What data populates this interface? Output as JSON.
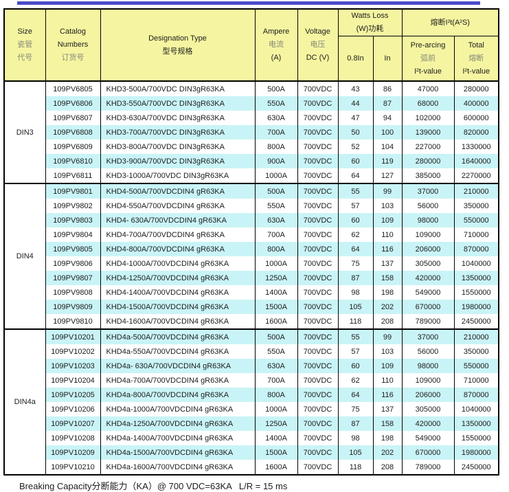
{
  "accent_bar_color": "#4B4BC8",
  "header_bg_color": "#F5F5A1",
  "stripe_color": "#C9F4F7",
  "header": {
    "size_en": "Size",
    "size_cn1": "瓷管",
    "size_cn2": "代号",
    "catalog_en1": "Catalog",
    "catalog_en2": "Numbers",
    "catalog_cn": "订货号",
    "designation_en": "Designation Type",
    "designation_cn": "型号规格",
    "ampere_en": "Ampere",
    "ampere_cn": "电流",
    "ampere_unit": "(A)",
    "voltage_en": "Voltage",
    "voltage_cn": "电压",
    "voltage_unit": "DC (V)",
    "watts_en": "Watts Loss",
    "watts_cn": "(W)功耗",
    "watts_col1": "0.8In",
    "watts_col2": "In",
    "i2t_title": "熔断I²t(A²S)",
    "prearcing_en": "Pre-arcing",
    "prearcing_cn": "弧前",
    "prearcing_val": "I²t-value",
    "total_en": "Total",
    "total_cn": "熔断",
    "total_val": "I²t-value"
  },
  "sections": [
    {
      "size": "DIN3",
      "rows": [
        [
          "109PV6805",
          "KHD3-500A/700VDC DIN3gR63KA",
          "500A",
          "700VDC",
          "43",
          "86",
          "47000",
          "280000"
        ],
        [
          "109PV6806",
          "KHD3-550A/700VDC DIN3gR63KA",
          "550A",
          "700VDC",
          "44",
          "87",
          "68000",
          "400000"
        ],
        [
          "109PV6807",
          "KHD3-630A/700VDC DIN3gR63KA",
          "630A",
          "700VDC",
          "47",
          "94",
          "102000",
          "600000"
        ],
        [
          "109PV6808",
          "KHD3-700A/700VDC DIN3gR63KA",
          "700A",
          "700VDC",
          "50",
          "100",
          "139000",
          "820000"
        ],
        [
          "109PV6809",
          "KHD3-800A/700VDC DIN3gR63KA",
          "800A",
          "700VDC",
          "52",
          "104",
          "227000",
          "1330000"
        ],
        [
          "109PV6810",
          "KHD3-900A/700VDC DIN3gR63KA",
          "900A",
          "700VDC",
          "60",
          "119",
          "280000",
          "1640000"
        ],
        [
          "109PV6811",
          "KHD3-1000A/700VDC DIN3gR63KA",
          "1000A",
          "700VDC",
          "64",
          "127",
          "385000",
          "2270000"
        ]
      ]
    },
    {
      "size": "DIN4",
      "rows": [
        [
          "109PV9801",
          "KHD4-500A/700VDCDIN4 gR63KA",
          "500A",
          "700VDC",
          "55",
          "99",
          "37000",
          "210000"
        ],
        [
          "109PV9802",
          "KHD4-550A/700VDCDIN4 gR63KA",
          "550A",
          "700VDC",
          "57",
          "103",
          "56000",
          "350000"
        ],
        [
          "109PV9803",
          "KHD4- 630A/700VDCDIN4 gR63KA",
          "630A",
          "700VDC",
          "60",
          "109",
          "98000",
          "550000"
        ],
        [
          "109PV9804",
          "KHD4-700A/700VDCDIN4 gR63KA",
          "700A",
          "700VDC",
          "62",
          "110",
          "109000",
          "710000"
        ],
        [
          "109PV9805",
          "KHD4-800A/700VDCDIN4 gR63KA",
          "800A",
          "700VDC",
          "64",
          "116",
          "206000",
          "870000"
        ],
        [
          "109PV9806",
          "KHD4-1000A/700VDCDIN4 gR63KA",
          "1000A",
          "700VDC",
          "75",
          "137",
          "305000",
          "1040000"
        ],
        [
          "109PV9807",
          "KHD4-1250A/700VDCDIN4 gR63KA",
          "1250A",
          "700VDC",
          "87",
          "158",
          "420000",
          "1350000"
        ],
        [
          "109PV9808",
          "KHD4-1400A/700VDCDIN4 gR63KA",
          "1400A",
          "700VDC",
          "98",
          "198",
          "549000",
          "1550000"
        ],
        [
          "109PV9809",
          "KHD4-1500A/700VDCDIN4 gR63KA",
          "1500A",
          "700VDC",
          "105",
          "202",
          "670000",
          "1980000"
        ],
        [
          "109PV9810",
          "KHD4-1600A/700VDCDIN4 gR63KA",
          "1600A",
          "700VDC",
          "118",
          "208",
          "789000",
          "2450000"
        ]
      ]
    },
    {
      "size": "DIN4a",
      "rows": [
        [
          "109PV10201",
          "KHD4a-500A/700VDCDIN4 gR63KA",
          "500A",
          "700VDC",
          "55",
          "99",
          "37000",
          "210000"
        ],
        [
          "109PV10202",
          "KHD4a-550A/700VDCDIN4 gR63KA",
          "550A",
          "700VDC",
          "57",
          "103",
          "56000",
          "350000"
        ],
        [
          "109PV10203",
          "KHD4a- 630A/700VDCDIN4 gR63KA",
          "630A",
          "700VDC",
          "60",
          "109",
          "98000",
          "550000"
        ],
        [
          "109PV10204",
          "KHD4a-700A/700VDCDIN4 gR63KA",
          "700A",
          "700VDC",
          "62",
          "110",
          "109000",
          "710000"
        ],
        [
          "109PV10205",
          "KHD4a-800A/700VDCDIN4 gR63KA",
          "800A",
          "700VDC",
          "64",
          "116",
          "206000",
          "870000"
        ],
        [
          "109PV10206",
          "KHD4a-1000A/700VDCDIN4 gR63KA",
          "1000A",
          "700VDC",
          "75",
          "137",
          "305000",
          "1040000"
        ],
        [
          "109PV10207",
          "KHD4a-1250A/700VDCDIN4 gR63KA",
          "1250A",
          "700VDC",
          "87",
          "158",
          "420000",
          "1350000"
        ],
        [
          "109PV10208",
          "KHD4a-1400A/700VDCDIN4 gR63KA",
          "1400A",
          "700VDC",
          "98",
          "198",
          "549000",
          "1550000"
        ],
        [
          "109PV10209",
          "KHD4a-1500A/700VDCDIN4 gR63KA",
          "1500A",
          "700VDC",
          "105",
          "202",
          "670000",
          "1980000"
        ],
        [
          "109PV10210",
          "KHD4a-1600A/700VDCDIN4 gR63KA",
          "1600A",
          "700VDC",
          "118",
          "208",
          "789000",
          "2450000"
        ]
      ]
    }
  ],
  "footer": {
    "text": "Breaking Capacity分断能力（KA）@ 700 VDC=63KA   L/R = 15 ms"
  }
}
